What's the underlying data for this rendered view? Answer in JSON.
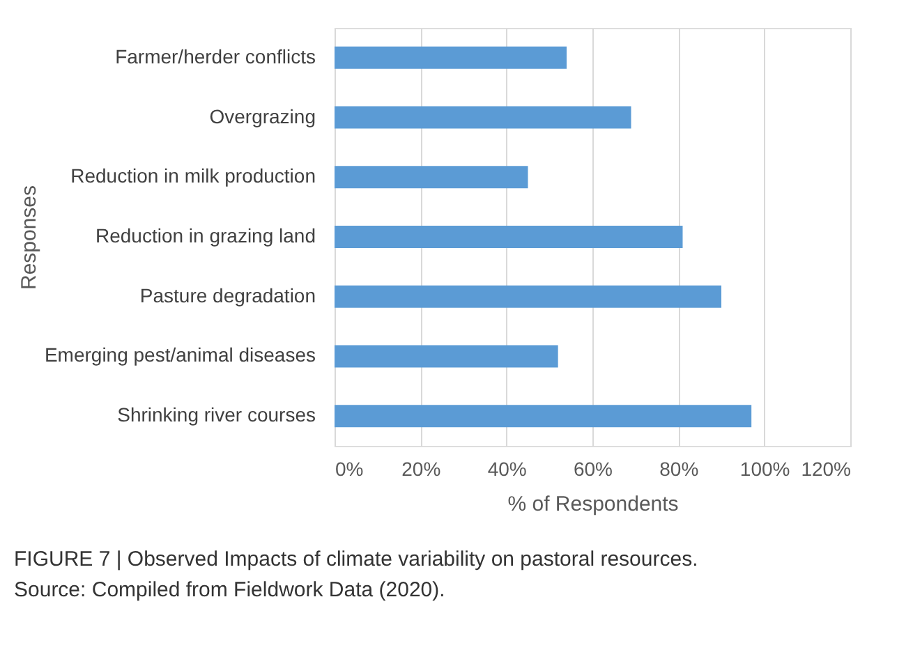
{
  "chart_data": {
    "type": "bar",
    "orientation": "horizontal",
    "xlabel": "% of Respondents",
    "ylabel": "Responses",
    "categories": [
      "Farmer/herder conflicts",
      "Overgrazing",
      "Reduction in milk production",
      "Reduction in grazing land",
      "Pasture degradation",
      "Emerging pest/animal diseases",
      "Shrinking river courses"
    ],
    "values": [
      54,
      69,
      45,
      81,
      90,
      52,
      97
    ],
    "color": "#5b9bd5",
    "xlim": [
      0,
      120
    ],
    "xticks": [
      {
        "value": 0,
        "label": "0%"
      },
      {
        "value": 20,
        "label": "20%"
      },
      {
        "value": 40,
        "label": "40%"
      },
      {
        "value": 60,
        "label": "60%"
      },
      {
        "value": 80,
        "label": "80%"
      },
      {
        "value": 100,
        "label": "100%"
      },
      {
        "value": 120,
        "label": "120%"
      }
    ],
    "grid": "x",
    "annotations": [
      "FIGURE 7 | Observed Impacts of climate variability on pastoral resources.",
      "Source: Compiled from Fieldwork Data (2020)."
    ]
  }
}
